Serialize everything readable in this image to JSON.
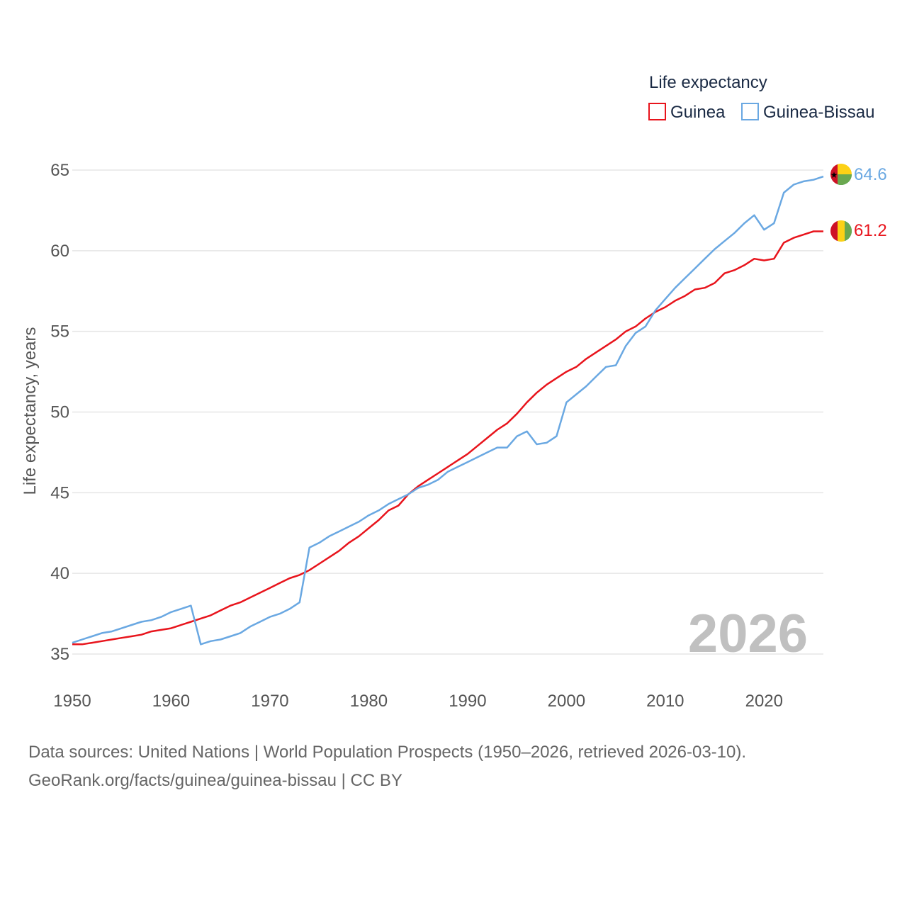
{
  "chart_data": {
    "type": "line",
    "legend_title": "Life expectancy",
    "ylabel": "Life expectancy, years",
    "xlim": [
      1950,
      2026
    ],
    "ylim": [
      35,
      65
    ],
    "yticks": [
      35,
      40,
      45,
      50,
      55,
      60,
      65
    ],
    "xticks": [
      1950,
      1960,
      1970,
      1980,
      1990,
      2000,
      2010,
      2020
    ],
    "watermark_year": "2026",
    "legend_position": "top-right",
    "x": [
      1950,
      1951,
      1952,
      1953,
      1954,
      1955,
      1956,
      1957,
      1958,
      1959,
      1960,
      1961,
      1962,
      1963,
      1964,
      1965,
      1966,
      1967,
      1968,
      1969,
      1970,
      1971,
      1972,
      1973,
      1974,
      1975,
      1976,
      1977,
      1978,
      1979,
      1980,
      1981,
      1982,
      1983,
      1984,
      1985,
      1986,
      1987,
      1988,
      1989,
      1990,
      1991,
      1992,
      1993,
      1994,
      1995,
      1996,
      1997,
      1998,
      1999,
      2000,
      2001,
      2002,
      2003,
      2004,
      2005,
      2006,
      2007,
      2008,
      2009,
      2010,
      2011,
      2012,
      2013,
      2014,
      2015,
      2016,
      2017,
      2018,
      2019,
      2020,
      2021,
      2022,
      2023,
      2024,
      2025,
      2026
    ],
    "series": [
      {
        "name": "Guinea",
        "color": "#e8141c",
        "end_label": "61.2",
        "flag": "guinea-flag",
        "values": [
          35.6,
          35.6,
          35.7,
          35.8,
          35.9,
          36.0,
          36.1,
          36.2,
          36.4,
          36.5,
          36.6,
          36.8,
          37.0,
          37.2,
          37.4,
          37.7,
          38.0,
          38.2,
          38.5,
          38.8,
          39.1,
          39.4,
          39.7,
          39.9,
          40.2,
          40.6,
          41.0,
          41.4,
          41.9,
          42.3,
          42.8,
          43.3,
          43.9,
          44.2,
          44.9,
          45.4,
          45.8,
          46.2,
          46.6,
          47.0,
          47.4,
          47.9,
          48.4,
          48.9,
          49.3,
          49.9,
          50.6,
          51.2,
          51.7,
          52.1,
          52.5,
          52.8,
          53.3,
          53.7,
          54.1,
          54.5,
          55.0,
          55.3,
          55.8,
          56.2,
          56.5,
          56.9,
          57.2,
          57.6,
          57.7,
          58.0,
          58.6,
          58.8,
          59.1,
          59.5,
          59.4,
          59.5,
          60.5,
          60.8,
          61.0,
          61.2,
          61.2
        ]
      },
      {
        "name": "Guinea-Bissau",
        "color": "#6aa8e2",
        "end_label": "64.6",
        "flag": "guinea-bissau-flag",
        "values": [
          35.7,
          35.9,
          36.1,
          36.3,
          36.4,
          36.6,
          36.8,
          37.0,
          37.1,
          37.3,
          37.6,
          37.8,
          38.0,
          35.6,
          35.8,
          35.9,
          36.1,
          36.3,
          36.7,
          37.0,
          37.3,
          37.5,
          37.8,
          38.2,
          41.6,
          41.9,
          42.3,
          42.6,
          42.9,
          43.2,
          43.6,
          43.9,
          44.3,
          44.6,
          44.9,
          45.3,
          45.5,
          45.8,
          46.3,
          46.6,
          46.9,
          47.2,
          47.5,
          47.8,
          47.8,
          48.5,
          48.8,
          48.0,
          48.1,
          48.5,
          50.6,
          51.1,
          51.6,
          52.2,
          52.8,
          52.9,
          54.1,
          54.9,
          55.3,
          56.3,
          57.0,
          57.7,
          58.3,
          58.9,
          59.5,
          60.1,
          60.6,
          61.1,
          61.7,
          62.2,
          61.3,
          61.7,
          63.6,
          64.1,
          64.3,
          64.4,
          64.6
        ]
      }
    ]
  },
  "source": {
    "line1": "Data sources: United Nations | World Population Prospects (1950–2026, retrieved 2026-03-10).",
    "line2": "GeoRank.org/facts/guinea/guinea-bissau | CC BY"
  },
  "colors": {
    "grid": "#e6e6e6",
    "tick": "#555555",
    "watermark": "#c0c0c0"
  }
}
